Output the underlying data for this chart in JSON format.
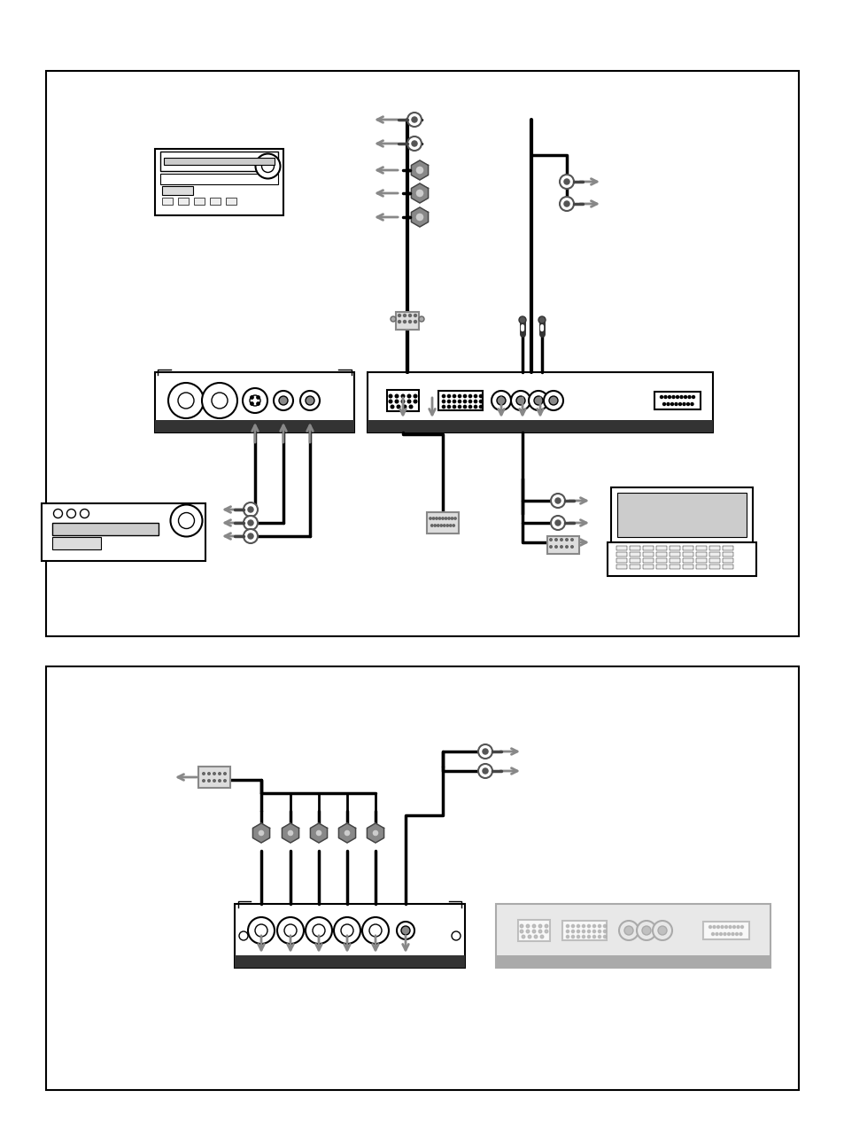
{
  "fig_w": 9.54,
  "fig_h": 12.74,
  "dpi": 100,
  "bg": "#ffffff",
  "lc": "#000000",
  "ac": "#888888",
  "gc": "#cccccc",
  "dark": "#333333"
}
